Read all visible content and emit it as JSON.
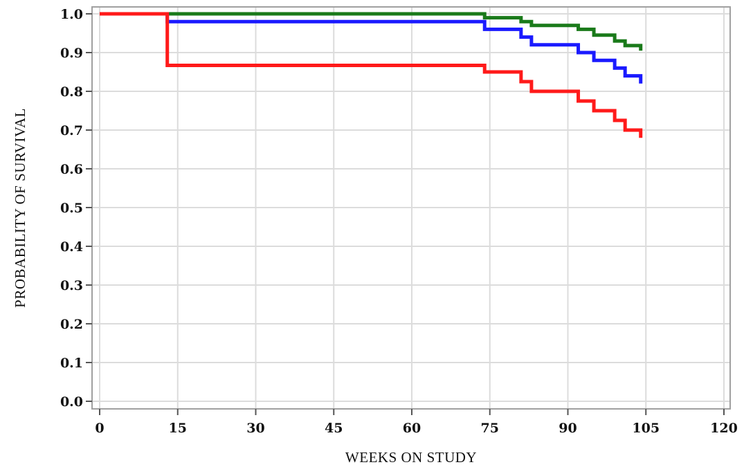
{
  "chart_data": {
    "type": "line",
    "title": "",
    "xlabel": "WEEKS ON STUDY",
    "ylabel": "PROBABILITY OF SURVIVAL",
    "xlim": [
      0,
      120
    ],
    "ylim": [
      0,
      1.0
    ],
    "x_ticks": [
      0,
      15,
      30,
      45,
      60,
      75,
      90,
      105,
      120
    ],
    "x_tick_labels": [
      "0",
      "15",
      "30",
      "45",
      "60",
      "75",
      "90",
      "105",
      "120"
    ],
    "y_ticks": [
      0,
      0.1,
      0.2,
      0.3,
      0.4,
      0.5,
      0.6,
      0.7,
      0.8,
      0.9,
      1.0
    ],
    "y_tick_labels": [
      "0.0",
      "0.1",
      "0.2",
      "0.3",
      "0.4",
      "0.5",
      "0.6",
      "0.7",
      "0.8",
      "0.9",
      "1.0"
    ],
    "grid": true,
    "step": true,
    "series": [
      {
        "color": "#1a7a1a",
        "x": [
          0,
          74,
          81,
          83,
          92,
          95,
          99,
          101,
          104
        ],
        "y": [
          1.0,
          0.99,
          0.98,
          0.97,
          0.96,
          0.945,
          0.93,
          0.918,
          0.905
        ]
      },
      {
        "color": "#1a1aff",
        "x": [
          0,
          13,
          74,
          81,
          83,
          92,
          95,
          99,
          101,
          104
        ],
        "y": [
          1.0,
          0.98,
          0.96,
          0.94,
          0.92,
          0.9,
          0.88,
          0.86,
          0.84,
          0.82
        ]
      },
      {
        "color": "#ff1a1a",
        "x": [
          0,
          13,
          74,
          81,
          83,
          92,
          95,
          99,
          101,
          104
        ],
        "y": [
          1.0,
          0.867,
          0.85,
          0.825,
          0.8,
          0.775,
          0.75,
          0.725,
          0.7,
          0.68
        ]
      }
    ]
  }
}
